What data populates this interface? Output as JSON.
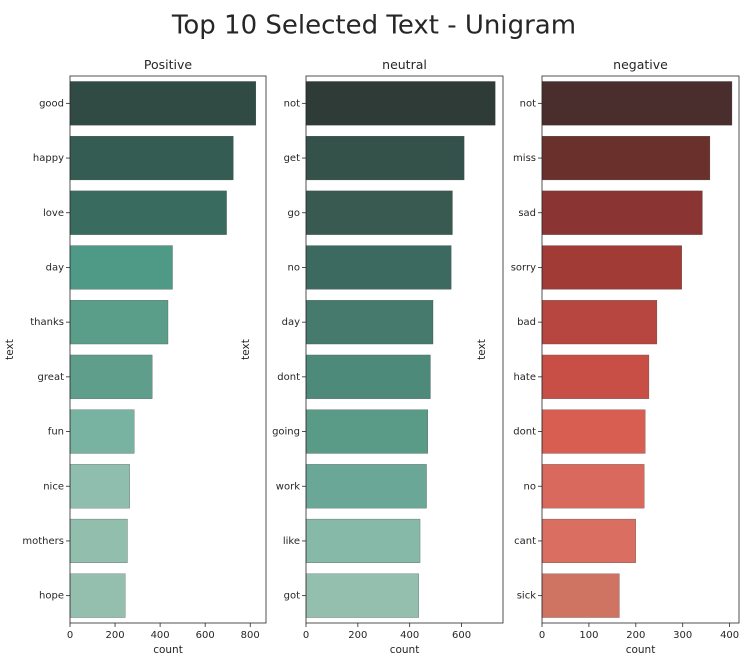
{
  "chart_data": {
    "title": "Top 10 Selected Text - Unigram",
    "type": "bar",
    "orientation": "horizontal",
    "panels": [
      {
        "title": "Positive",
        "xlabel": "count",
        "ylabel": "text",
        "xlim": [
          0,
          870
        ],
        "xticks": [
          0,
          200,
          400,
          600,
          800
        ],
        "categories": [
          "good",
          "happy",
          "love",
          "day",
          "thanks",
          "great",
          "fun",
          "nice",
          "mothers",
          "hope"
        ],
        "values": [
          825,
          725,
          695,
          455,
          435,
          365,
          285,
          265,
          255,
          245
        ],
        "colors": [
          "#2f4b43",
          "#355c52",
          "#3a6b5f",
          "#4e9a86",
          "#5a9e8a",
          "#5e9e8b",
          "#78b3a2",
          "#8fbeae",
          "#92beae",
          "#94bfaf"
        ]
      },
      {
        "title": "neutral",
        "xlabel": "count",
        "ylabel": "text",
        "xlim": [
          0,
          760
        ],
        "xticks": [
          0,
          200,
          400,
          600
        ],
        "categories": [
          "not",
          "get",
          "go",
          "no",
          "day",
          "dont",
          "going",
          "work",
          "like",
          "got"
        ],
        "values": [
          730,
          610,
          565,
          560,
          490,
          480,
          470,
          465,
          440,
          435
        ],
        "colors": [
          "#2f3b36",
          "#34514a",
          "#385a51",
          "#3d6a60",
          "#457a6c",
          "#4d8a7a",
          "#5a9b88",
          "#6aa796",
          "#87b9a8",
          "#94bfaf"
        ]
      },
      {
        "title": "negative",
        "xlabel": "count",
        "ylabel": "text",
        "xlim": [
          0,
          420
        ],
        "xticks": [
          0,
          100,
          200,
          300,
          400
        ],
        "categories": [
          "not",
          "miss",
          "sad",
          "sorry",
          "bad",
          "hate",
          "dont",
          "no",
          "cant",
          "sick"
        ],
        "values": [
          405,
          358,
          342,
          298,
          245,
          228,
          220,
          218,
          200,
          165
        ],
        "colors": [
          "#4a2e2d",
          "#6a302c",
          "#8a3533",
          "#a03b36",
          "#b84640",
          "#c84f46",
          "#d85e52",
          "#d9695c",
          "#d96e61",
          "#cf7463"
        ]
      }
    ]
  }
}
